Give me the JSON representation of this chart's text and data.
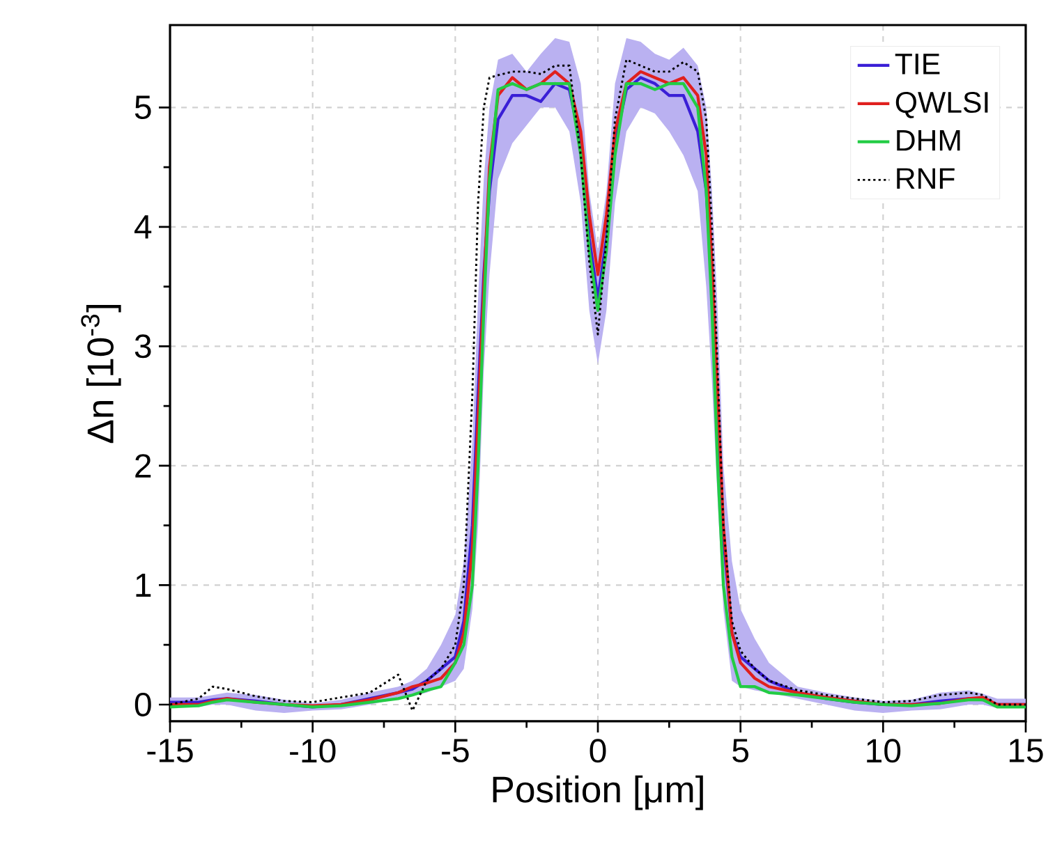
{
  "chart_data": {
    "type": "line",
    "xlabel": "Position [μm]",
    "ylabel": "Δn [10$^{-3}$]",
    "x": [
      -15,
      -14,
      -13.5,
      -13,
      -12,
      -11,
      -10,
      -9,
      -8,
      -7,
      -6.5,
      -6,
      -5.5,
      -5,
      -4.7,
      -4.4,
      -4.2,
      -4,
      -3.8,
      -3.5,
      -3,
      -2.5,
      -2,
      -1.5,
      -1,
      -0.6,
      -0.3,
      0,
      0.3,
      0.6,
      1,
      1.5,
      2,
      2.5,
      3,
      3.5,
      3.8,
      4,
      4.2,
      4.4,
      4.7,
      5,
      5.5,
      6,
      7,
      8,
      9,
      10,
      11,
      12,
      13,
      13.5,
      14,
      15
    ],
    "series": [
      {
        "name": "TIE",
        "color": "#3a1fd6",
        "values": [
          0.02,
          0.02,
          0.04,
          0.05,
          0.03,
          0.0,
          -0.02,
          0.0,
          0.05,
          0.1,
          0.13,
          0.2,
          0.3,
          0.4,
          0.7,
          1.5,
          2.6,
          3.6,
          4.3,
          4.9,
          5.1,
          5.1,
          5.05,
          5.2,
          5.15,
          4.7,
          3.9,
          3.4,
          3.9,
          4.7,
          5.15,
          5.25,
          5.2,
          5.1,
          5.1,
          4.8,
          4.3,
          3.5,
          2.5,
          1.4,
          0.6,
          0.4,
          0.3,
          0.2,
          0.1,
          0.05,
          0.02,
          0.0,
          0.0,
          0.03,
          0.05,
          0.04,
          0.0,
          0.0
        ],
        "lower": [
          -0.02,
          -0.02,
          0.0,
          0.0,
          -0.05,
          -0.07,
          -0.05,
          -0.04,
          0.0,
          0.05,
          0.07,
          0.1,
          0.15,
          0.2,
          0.3,
          0.8,
          1.5,
          2.8,
          3.6,
          4.4,
          4.7,
          4.85,
          5.0,
          5.0,
          4.8,
          4.2,
          3.3,
          2.85,
          3.3,
          4.2,
          4.8,
          5.0,
          4.95,
          4.8,
          4.6,
          4.3,
          3.5,
          2.7,
          1.7,
          0.8,
          0.2,
          0.15,
          0.12,
          0.1,
          0.05,
          0.0,
          -0.05,
          -0.07,
          -0.05,
          -0.04,
          0.0,
          0.0,
          -0.03,
          -0.03
        ],
        "upper": [
          0.06,
          0.06,
          0.08,
          0.1,
          0.08,
          0.04,
          0.01,
          0.04,
          0.1,
          0.15,
          0.2,
          0.3,
          0.5,
          0.75,
          1.2,
          2.2,
          3.4,
          4.4,
          5.0,
          5.4,
          5.45,
          5.3,
          5.45,
          5.58,
          5.55,
          5.2,
          4.3,
          3.8,
          4.3,
          5.2,
          5.58,
          5.55,
          5.45,
          5.4,
          5.5,
          5.35,
          5.0,
          4.3,
          3.3,
          2.0,
          1.2,
          0.8,
          0.55,
          0.35,
          0.15,
          0.1,
          0.06,
          0.03,
          0.04,
          0.1,
          0.12,
          0.09,
          0.05,
          0.05
        ]
      },
      {
        "name": "QWLSI",
        "color": "#e0201e",
        "values": [
          0.0,
          0.0,
          0.03,
          0.05,
          0.02,
          0.0,
          -0.01,
          0.0,
          0.04,
          0.1,
          0.15,
          0.18,
          0.22,
          0.35,
          0.6,
          1.3,
          2.4,
          3.5,
          4.5,
          5.1,
          5.25,
          5.15,
          5.2,
          5.3,
          5.2,
          4.8,
          4.1,
          3.6,
          4.1,
          4.8,
          5.2,
          5.3,
          5.25,
          5.2,
          5.25,
          5.1,
          4.6,
          3.7,
          2.6,
          1.5,
          0.6,
          0.35,
          0.22,
          0.15,
          0.1,
          0.06,
          0.03,
          0.0,
          0.0,
          0.01,
          0.05,
          0.06,
          0.0,
          0.0
        ]
      },
      {
        "name": "DHM",
        "color": "#22cc44",
        "values": [
          -0.02,
          -0.01,
          0.02,
          0.04,
          0.02,
          0.0,
          -0.02,
          -0.01,
          0.02,
          0.05,
          0.08,
          0.12,
          0.15,
          0.35,
          0.5,
          1.0,
          2.0,
          3.3,
          4.4,
          5.15,
          5.2,
          5.15,
          5.2,
          5.2,
          5.2,
          4.6,
          3.8,
          3.3,
          3.8,
          4.6,
          5.2,
          5.2,
          5.15,
          5.2,
          5.2,
          5.0,
          4.3,
          3.3,
          2.0,
          1.0,
          0.4,
          0.15,
          0.15,
          0.1,
          0.08,
          0.05,
          0.02,
          0.0,
          -0.01,
          0.01,
          0.04,
          0.04,
          -0.02,
          -0.02
        ]
      },
      {
        "name": "RNF",
        "color": "#000000",
        "line_style": "dotted",
        "values": [
          0.0,
          0.05,
          0.15,
          0.13,
          0.07,
          0.03,
          0.02,
          0.06,
          0.1,
          0.25,
          -0.05,
          0.2,
          0.3,
          0.5,
          1.0,
          2.6,
          4.2,
          5.0,
          5.25,
          5.27,
          5.3,
          5.3,
          5.28,
          5.35,
          5.35,
          4.6,
          3.7,
          3.1,
          3.9,
          4.9,
          5.4,
          5.35,
          5.3,
          5.3,
          5.38,
          5.3,
          4.9,
          4.0,
          2.8,
          1.5,
          0.7,
          0.45,
          0.3,
          0.2,
          0.12,
          0.08,
          0.05,
          0.02,
          0.03,
          0.08,
          0.1,
          0.08,
          0.0,
          0.0
        ]
      }
    ],
    "xlim": [
      -15,
      15
    ],
    "ylim": [
      -0.14,
      5.69
    ],
    "xticks": [
      -15,
      -10,
      -5,
      0,
      5,
      10,
      15
    ],
    "yticks": [
      0,
      1,
      2,
      3,
      4,
      5
    ],
    "grid": true,
    "legend": "top right",
    "line_style": "solid"
  }
}
